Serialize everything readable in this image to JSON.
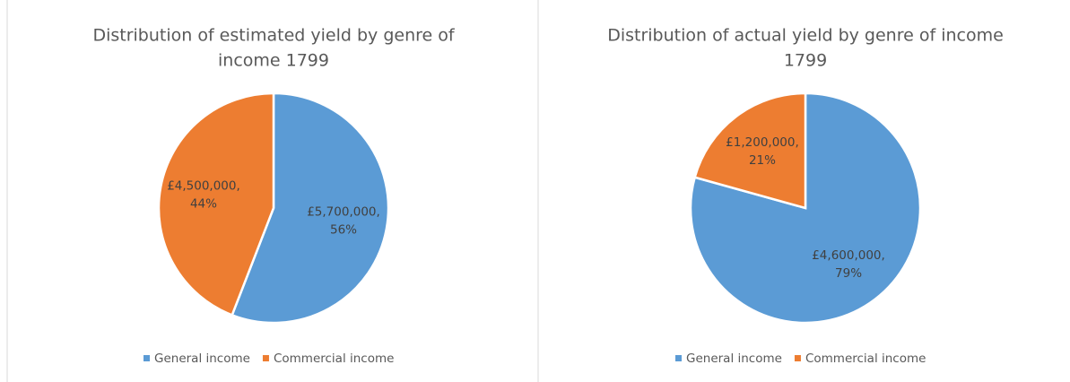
{
  "chart_data": [
    {
      "type": "pie",
      "title": "Distribution of estimated yield by genre of income 1799",
      "title_lines": [
        "Distribution of estimated yield by genre of",
        "income 1799"
      ],
      "categories": [
        "General income",
        "Commercial income"
      ],
      "values": [
        5700000,
        4500000
      ],
      "value_labels": [
        "£5,700,000,",
        "£4,500,000,"
      ],
      "percent_labels": [
        "56%",
        "44%"
      ],
      "colors": [
        "#5b9bd5",
        "#ed7d31"
      ],
      "legend": "bottom"
    },
    {
      "type": "pie",
      "title": "Distribution of actual yield by genre of income 1799",
      "title_lines": [
        "Distribution of actual yield by genre of income",
        "1799"
      ],
      "categories": [
        "General income",
        "Commercial income"
      ],
      "values": [
        4600000,
        1200000
      ],
      "value_labels": [
        "£4,600,000,",
        "£1,200,000,"
      ],
      "percent_labels": [
        "79%",
        "21%"
      ],
      "colors": [
        "#5b9bd5",
        "#ed7d31"
      ],
      "legend": "bottom"
    }
  ]
}
